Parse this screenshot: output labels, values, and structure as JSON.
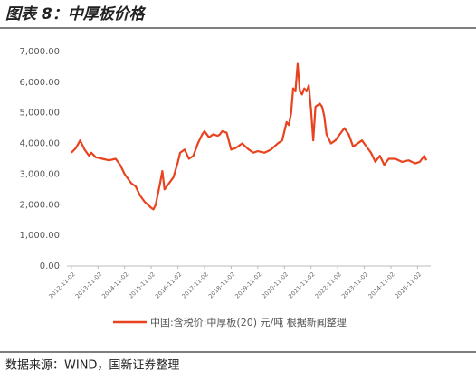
{
  "title": "图表 8：中厚板价格",
  "source": "数据来源：WIND，国新证券整理",
  "chart_data": {
    "type": "line",
    "x": [
      "2012-11-02",
      "2013-01-02",
      "2013-03-02",
      "2013-05-02",
      "2013-07-02",
      "2013-08-02",
      "2013-10-02",
      "2014-01-02",
      "2014-04-02",
      "2014-07-02",
      "2014-09-02",
      "2014-11-02",
      "2015-02-02",
      "2015-04-02",
      "2015-06-02",
      "2015-08-02",
      "2015-11-02",
      "2015-12-02",
      "2016-01-02",
      "2016-03-02",
      "2016-04-02",
      "2016-05-02",
      "2016-06-02",
      "2016-09-02",
      "2016-11-02",
      "2016-12-02",
      "2017-02-02",
      "2017-04-02",
      "2017-06-02",
      "2017-08-02",
      "2017-10-02",
      "2017-11-02",
      "2018-01-02",
      "2018-03-02",
      "2018-05-02",
      "2018-06-02",
      "2018-07-02",
      "2018-09-02",
      "2018-11-02",
      "2019-01-02",
      "2019-04-02",
      "2019-07-02",
      "2019-09-02",
      "2019-11-02",
      "2020-02-02",
      "2020-05-02",
      "2020-08-02",
      "2020-10-02",
      "2020-11-02",
      "2020-12-02",
      "2021-01-02",
      "2021-02-02",
      "2021-03-02",
      "2021-04-02",
      "2021-05-02",
      "2021-06-02",
      "2021-07-02",
      "2021-08-02",
      "2021-09-02",
      "2021-10-02",
      "2021-11-02",
      "2021-12-02",
      "2022-01-02",
      "2022-03-02",
      "2022-04-02",
      "2022-05-02",
      "2022-06-02",
      "2022-08-02",
      "2022-10-02",
      "2022-12-02",
      "2023-02-02",
      "2023-04-02",
      "2023-06-02",
      "2023-08-02",
      "2023-10-02",
      "2023-12-02",
      "2024-02-02",
      "2024-04-02",
      "2024-06-02",
      "2024-08-02",
      "2024-10-02",
      "2025-01-02",
      "2025-04-02",
      "2025-07-02",
      "2025-10-02",
      "2025-12-02",
      "2026-02-02",
      "2026-03-02"
    ],
    "series": [
      {
        "name": "中国:含税价:中厚板(20) 元/吨 根据新闻整理",
        "color": "#e8431e",
        "values": [
          3700,
          3850,
          4100,
          3800,
          3600,
          3700,
          3550,
          3500,
          3450,
          3500,
          3300,
          3000,
          2700,
          2600,
          2300,
          2100,
          1900,
          1850,
          2000,
          2700,
          3100,
          2500,
          2600,
          2900,
          3400,
          3700,
          3800,
          3500,
          3600,
          4000,
          4300,
          4400,
          4200,
          4300,
          4250,
          4300,
          4400,
          4350,
          3800,
          3850,
          4000,
          3800,
          3700,
          3750,
          3700,
          3800,
          4000,
          4100,
          4400,
          4700,
          4600,
          5000,
          5800,
          5700,
          6600,
          5700,
          5600,
          5800,
          5700,
          5900,
          5100,
          4100,
          5200,
          5300,
          5200,
          4900,
          4300,
          4000,
          4100,
          4300,
          4500,
          4300,
          3900,
          4000,
          4100,
          3900,
          3700,
          3400,
          3600,
          3300,
          3500,
          3500,
          3400,
          3450,
          3350,
          3400,
          3600,
          3450
        ]
      }
    ],
    "xlim": [
      "2012-09-02",
      "2026-05-02"
    ],
    "xticks": [
      "2012-11-02",
      "2013-11-02",
      "2014-11-02",
      "2015-11-02",
      "2016-11-02",
      "2017-11-02",
      "2018-11-02",
      "2019-11-02",
      "2020-11-02",
      "2021-11-02",
      "2022-11-02",
      "2023-11-02",
      "2024-11-02",
      "2025-11-02"
    ],
    "ylim": [
      0,
      7000
    ],
    "yticks": [
      {
        "value": 0,
        "label": "0.00"
      },
      {
        "value": 1000,
        "label": "1,000.00"
      },
      {
        "value": 2000,
        "label": "2,000.00"
      },
      {
        "value": 3000,
        "label": "3,000.00"
      },
      {
        "value": 4000,
        "label": "4,000.00"
      },
      {
        "value": 5000,
        "label": "5,000.00"
      },
      {
        "value": 6000,
        "label": "6,000.00"
      },
      {
        "value": 7000,
        "label": "7,000.00"
      }
    ],
    "grid": false
  }
}
